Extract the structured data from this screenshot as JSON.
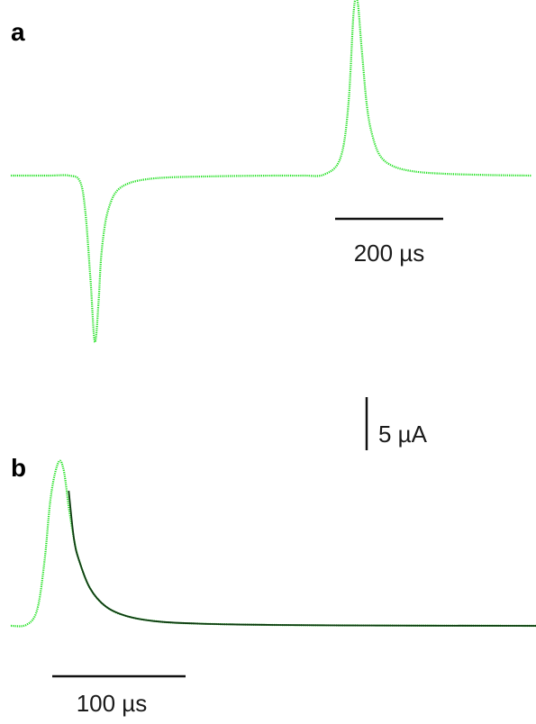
{
  "panels": {
    "a": {
      "label": "a"
    },
    "b": {
      "label": "b"
    }
  },
  "scalebars": {
    "time_a": {
      "label": "200 µs",
      "value": 200,
      "unit": "µs"
    },
    "current": {
      "label": "5 µA",
      "value": 5,
      "unit": "µA"
    },
    "time_b": {
      "label": "100 µs",
      "value": 100,
      "unit": "µs"
    }
  },
  "colors": {
    "trace": "#22e022",
    "fit": "#0f3a12",
    "scalebar": "#111111"
  },
  "chart_data": [
    {
      "type": "line",
      "panel": "a",
      "x_unit": "µs",
      "y_unit": "µA",
      "series": [
        {
          "x": [
            0,
            70,
            110,
            130,
            140,
            150,
            158,
            165,
            170,
            178,
            188,
            200,
            220,
            250,
            300,
            400,
            500,
            550,
            590,
            620,
            635,
            645,
            652,
            660,
            670,
            680,
            695,
            720,
            760,
            820,
            900,
            980
          ],
          "y": [
            0,
            0,
            0,
            -0.5,
            -3,
            -9,
            -14.3,
            -11,
            -7,
            -4,
            -2.3,
            -1.3,
            -0.7,
            -0.35,
            -0.15,
            -0.05,
            0,
            0,
            0.1,
            1.5,
            6,
            14,
            15.1,
            11,
            6,
            3.5,
            1.7,
            0.8,
            0.35,
            0.15,
            0.05,
            0
          ]
        }
      ]
    },
    {
      "type": "line",
      "panel": "b",
      "x_unit": "µs",
      "y_unit": "µA",
      "series": [
        {
          "x": [
            0,
            15,
            25,
            32,
            38,
            45,
            50,
            55,
            60,
            65,
            75,
            90,
            110,
            140,
            180,
            250,
            350,
            450,
            500
          ],
          "y": [
            0,
            0.1,
            1.5,
            6,
            12,
            15.1,
            14.5,
            11,
            8,
            6,
            3.5,
            1.8,
            0.9,
            0.4,
            0.2,
            0.08,
            0.03,
            0.01,
            0
          ]
        },
        {
          "x": [
            55,
            60,
            65,
            75,
            90,
            110,
            140,
            180,
            250,
            350,
            450,
            500
          ],
          "y": [
            12.5,
            8,
            6,
            3.5,
            1.8,
            0.9,
            0.4,
            0.2,
            0.08,
            0.03,
            0.01,
            0
          ]
        }
      ]
    }
  ]
}
